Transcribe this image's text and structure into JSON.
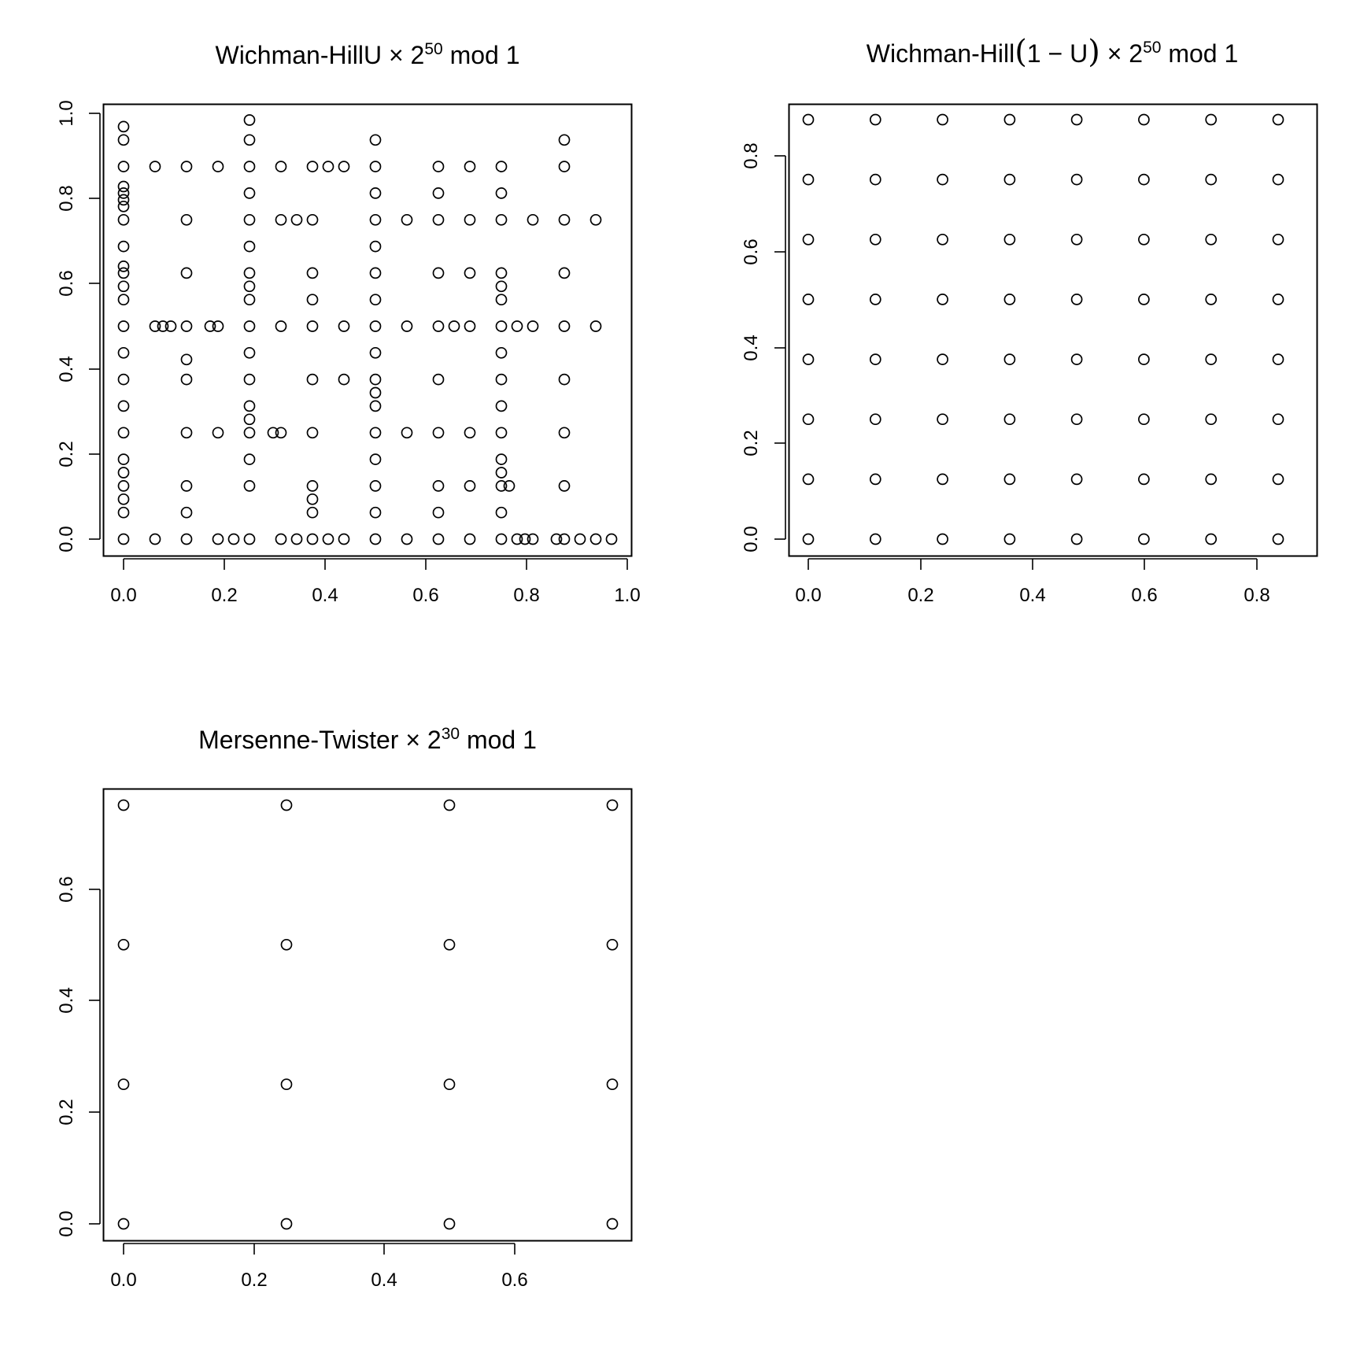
{
  "chart_data": [
    {
      "type": "scatter",
      "title": {
        "lead": "Wichman-HillU",
        "base": "2",
        "exp": "50",
        "tail": "mod 1",
        "open_paren": "",
        "inner": "",
        "close_paren": ""
      },
      "xlim": [
        0,
        1
      ],
      "ylim": [
        0,
        1
      ],
      "xticks": [
        "0.0",
        "0.2",
        "0.4",
        "0.6",
        "0.8",
        "1.0"
      ],
      "yticks": [
        "0.0",
        "0.2",
        "0.4",
        "0.6",
        "0.8",
        "1.0"
      ],
      "points": [
        [
          0,
          0
        ],
        [
          0,
          0.0625
        ],
        [
          0,
          0.09375
        ],
        [
          0,
          0.125
        ],
        [
          0,
          0.15625
        ],
        [
          0,
          0.1875
        ],
        [
          0,
          0.25
        ],
        [
          0,
          0.3125
        ],
        [
          0,
          0.375
        ],
        [
          0,
          0.4375
        ],
        [
          0,
          0.5
        ],
        [
          0,
          0.5625
        ],
        [
          0,
          0.59375
        ],
        [
          0,
          0.625
        ],
        [
          0,
          0.640625
        ],
        [
          0,
          0.6875
        ],
        [
          0,
          0.75
        ],
        [
          0,
          0.78125
        ],
        [
          0,
          0.796875
        ],
        [
          0,
          0.8125
        ],
        [
          0,
          0.828125
        ],
        [
          0,
          0.875
        ],
        [
          0,
          0.9375
        ],
        [
          0,
          0.96875
        ],
        [
          0.0625,
          0
        ],
        [
          0.0625,
          0.5
        ],
        [
          0.0625,
          0.875
        ],
        [
          0.078125,
          0.5
        ],
        [
          0.09375,
          0.5
        ],
        [
          0.125,
          0
        ],
        [
          0.125,
          0.0625
        ],
        [
          0.125,
          0.125
        ],
        [
          0.125,
          0.25
        ],
        [
          0.125,
          0.375
        ],
        [
          0.125,
          0.421875
        ],
        [
          0.125,
          0.5
        ],
        [
          0.125,
          0.625
        ],
        [
          0.125,
          0.75
        ],
        [
          0.125,
          0.875
        ],
        [
          0.171875,
          0.5
        ],
        [
          0.1875,
          0
        ],
        [
          0.1875,
          0.25
        ],
        [
          0.1875,
          0.5
        ],
        [
          0.1875,
          0.875
        ],
        [
          0.21875,
          0
        ],
        [
          0.25,
          0
        ],
        [
          0.25,
          0.125
        ],
        [
          0.25,
          0.1875
        ],
        [
          0.25,
          0.25
        ],
        [
          0.25,
          0.28125
        ],
        [
          0.25,
          0.3125
        ],
        [
          0.25,
          0.375
        ],
        [
          0.25,
          0.4375
        ],
        [
          0.25,
          0.5
        ],
        [
          0.25,
          0.5625
        ],
        [
          0.25,
          0.59375
        ],
        [
          0.25,
          0.625
        ],
        [
          0.25,
          0.6875
        ],
        [
          0.25,
          0.75
        ],
        [
          0.25,
          0.8125
        ],
        [
          0.25,
          0.875
        ],
        [
          0.25,
          0.9375
        ],
        [
          0.25,
          0.984375
        ],
        [
          0.296875,
          0.25
        ],
        [
          0.3125,
          0
        ],
        [
          0.3125,
          0.25
        ],
        [
          0.3125,
          0.5
        ],
        [
          0.3125,
          0.75
        ],
        [
          0.3125,
          0.875
        ],
        [
          0.34375,
          0
        ],
        [
          0.34375,
          0.75
        ],
        [
          0.375,
          0
        ],
        [
          0.375,
          0.0625
        ],
        [
          0.375,
          0.09375
        ],
        [
          0.375,
          0.125
        ],
        [
          0.375,
          0.25
        ],
        [
          0.375,
          0.375
        ],
        [
          0.375,
          0.5
        ],
        [
          0.375,
          0.5625
        ],
        [
          0.375,
          0.625
        ],
        [
          0.375,
          0.75
        ],
        [
          0.375,
          0.875
        ],
        [
          0.40625,
          0
        ],
        [
          0.40625,
          0.875
        ],
        [
          0.4375,
          0
        ],
        [
          0.4375,
          0.375
        ],
        [
          0.4375,
          0.5
        ],
        [
          0.4375,
          0.875
        ],
        [
          0.5,
          0
        ],
        [
          0.5,
          0.0625
        ],
        [
          0.5,
          0.125
        ],
        [
          0.5,
          0.1875
        ],
        [
          0.5,
          0.25
        ],
        [
          0.5,
          0.3125
        ],
        [
          0.5,
          0.34375
        ],
        [
          0.5,
          0.375
        ],
        [
          0.5,
          0.4375
        ],
        [
          0.5,
          0.5
        ],
        [
          0.5,
          0.5625
        ],
        [
          0.5,
          0.625
        ],
        [
          0.5,
          0.6875
        ],
        [
          0.5,
          0.75
        ],
        [
          0.5,
          0.8125
        ],
        [
          0.5,
          0.875
        ],
        [
          0.5,
          0.9375
        ],
        [
          0.5625,
          0
        ],
        [
          0.5625,
          0.25
        ],
        [
          0.5625,
          0.5
        ],
        [
          0.5625,
          0.75
        ],
        [
          0.625,
          0
        ],
        [
          0.625,
          0.0625
        ],
        [
          0.625,
          0.125
        ],
        [
          0.625,
          0.25
        ],
        [
          0.625,
          0.375
        ],
        [
          0.625,
          0.5
        ],
        [
          0.625,
          0.625
        ],
        [
          0.625,
          0.75
        ],
        [
          0.625,
          0.8125
        ],
        [
          0.625,
          0.875
        ],
        [
          0.65625,
          0.5
        ],
        [
          0.6875,
          0
        ],
        [
          0.6875,
          0.125
        ],
        [
          0.6875,
          0.25
        ],
        [
          0.6875,
          0.5
        ],
        [
          0.6875,
          0.625
        ],
        [
          0.6875,
          0.75
        ],
        [
          0.6875,
          0.875
        ],
        [
          0.75,
          0
        ],
        [
          0.75,
          0.0625
        ],
        [
          0.75,
          0.125
        ],
        [
          0.75,
          0.15625
        ],
        [
          0.75,
          0.1875
        ],
        [
          0.75,
          0.25
        ],
        [
          0.75,
          0.3125
        ],
        [
          0.75,
          0.375
        ],
        [
          0.75,
          0.4375
        ],
        [
          0.75,
          0.5
        ],
        [
          0.75,
          0.5625
        ],
        [
          0.75,
          0.59375
        ],
        [
          0.75,
          0.625
        ],
        [
          0.75,
          0.75
        ],
        [
          0.75,
          0.8125
        ],
        [
          0.75,
          0.875
        ],
        [
          0.765625,
          0.125
        ],
        [
          0.78125,
          0
        ],
        [
          0.78125,
          0.5
        ],
        [
          0.796875,
          0
        ],
        [
          0.8125,
          0
        ],
        [
          0.8125,
          0.5
        ],
        [
          0.8125,
          0.75
        ],
        [
          0.859375,
          0
        ],
        [
          0.875,
          0
        ],
        [
          0.875,
          0.125
        ],
        [
          0.875,
          0.25
        ],
        [
          0.875,
          0.375
        ],
        [
          0.875,
          0.5
        ],
        [
          0.875,
          0.625
        ],
        [
          0.875,
          0.75
        ],
        [
          0.875,
          0.875
        ],
        [
          0.875,
          0.9375
        ],
        [
          0.90625,
          0
        ],
        [
          0.9375,
          0
        ],
        [
          0.9375,
          0.5
        ],
        [
          0.9375,
          0.75
        ],
        [
          0.96875,
          0
        ]
      ]
    },
    {
      "type": "scatter",
      "title": {
        "lead": "Wichman-Hill",
        "open_paren": "(",
        "inner": "1 − U",
        "close_paren": ")",
        "base": "2",
        "exp": "50",
        "tail": "mod 1"
      },
      "xlim": [
        0,
        0.875
      ],
      "ylim": [
        0,
        0.875
      ],
      "xticks": [
        "0.0",
        "0.2",
        "0.4",
        "0.6",
        "0.8"
      ],
      "yticks": [
        "0.0",
        "0.2",
        "0.4",
        "0.6",
        "0.8"
      ],
      "grid_x": [
        0,
        0.125,
        0.25,
        0.375,
        0.5,
        0.625,
        0.75,
        0.875
      ],
      "grid_y": [
        0,
        0.125,
        0.25,
        0.375,
        0.5,
        0.625,
        0.75,
        0.875
      ]
    },
    {
      "type": "scatter",
      "title": {
        "lead": "Mersenne-Twister",
        "base": "2",
        "exp": "30",
        "tail": "mod 1",
        "open_paren": "",
        "inner": "",
        "close_paren": ""
      },
      "xlim": [
        0,
        0.75
      ],
      "ylim": [
        0,
        0.75
      ],
      "xticks": [
        "0.0",
        "0.2",
        "0.4",
        "0.6"
      ],
      "yticks": [
        "0.0",
        "0.2",
        "0.4",
        "0.6"
      ],
      "grid_x": [
        0,
        0.25,
        0.5,
        0.75
      ],
      "grid_y": [
        0,
        0.25,
        0.5,
        0.75
      ]
    }
  ]
}
